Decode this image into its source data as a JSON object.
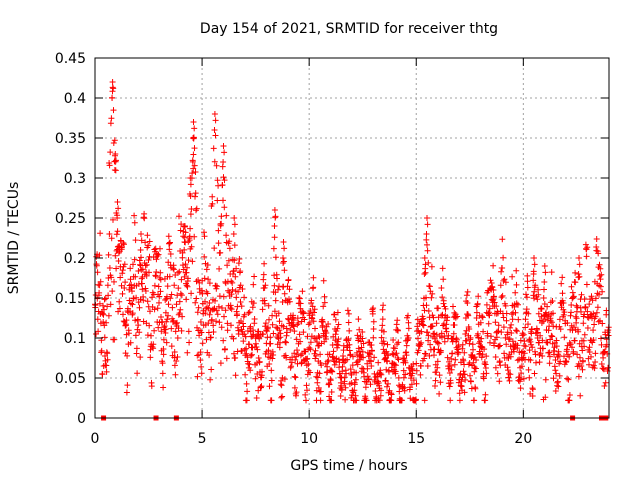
{
  "chart_data": {
    "type": "scatter",
    "title": "Day 154 of 2021, SRMTID for receiver thtg",
    "xlabel": "GPS time / hours",
    "ylabel": "SRMTID / TECUs",
    "xlim": [
      0,
      24
    ],
    "ylim": [
      0,
      0.45
    ],
    "x_ticks": [
      0,
      5,
      10,
      15,
      20
    ],
    "x_tick_labels": [
      "0",
      "5",
      "10",
      "15",
      "20"
    ],
    "y_ticks": [
      0,
      0.05,
      0.1,
      0.15,
      0.2,
      0.25,
      0.3,
      0.35,
      0.4,
      0.45
    ],
    "y_tick_labels": [
      "0",
      "0.05",
      "0.1",
      "0.15",
      "0.2",
      "0.25",
      "0.3",
      "0.35",
      "0.4",
      "0.45"
    ],
    "grid": true,
    "marker": "plus",
    "color": "#ff0000",
    "generator": {
      "seed": 154,
      "x_start": 0.0,
      "x_end": 24.0,
      "x_step": 0.012
    },
    "trend": [
      [
        0,
        0.15
      ],
      [
        0.5,
        0.13
      ],
      [
        1,
        0.15
      ],
      [
        1.5,
        0.13
      ],
      [
        2,
        0.15
      ],
      [
        2.5,
        0.16
      ],
      [
        3,
        0.13
      ],
      [
        3.5,
        0.14
      ],
      [
        4,
        0.16
      ],
      [
        4.5,
        0.15
      ],
      [
        5,
        0.13
      ],
      [
        5.5,
        0.13
      ],
      [
        6,
        0.15
      ],
      [
        6.5,
        0.12
      ],
      [
        7,
        0.1
      ],
      [
        7.5,
        0.09
      ],
      [
        8,
        0.1
      ],
      [
        9,
        0.095
      ],
      [
        10,
        0.095
      ],
      [
        11,
        0.08
      ],
      [
        12,
        0.06
      ],
      [
        13,
        0.065
      ],
      [
        14,
        0.06
      ],
      [
        15,
        0.06
      ],
      [
        15.5,
        0.1
      ],
      [
        16,
        0.11
      ],
      [
        17,
        0.075
      ],
      [
        18,
        0.09
      ],
      [
        18.8,
        0.13
      ],
      [
        19.5,
        0.11
      ],
      [
        20,
        0.09
      ],
      [
        21,
        0.09
      ],
      [
        22,
        0.1
      ],
      [
        23,
        0.12
      ],
      [
        23.5,
        0.13
      ],
      [
        24,
        0.08
      ]
    ],
    "peaks": [
      {
        "x": 0.82,
        "y": 0.42
      },
      {
        "x": 0.95,
        "y": 0.33
      },
      {
        "x": 1.05,
        "y": 0.27
      },
      {
        "x": 2.15,
        "y": 0.23
      },
      {
        "x": 4.2,
        "y": 0.24
      },
      {
        "x": 4.45,
        "y": 0.3
      },
      {
        "x": 4.6,
        "y": 0.37
      },
      {
        "x": 5.6,
        "y": 0.38
      },
      {
        "x": 6.0,
        "y": 0.34
      },
      {
        "x": 6.5,
        "y": 0.25
      },
      {
        "x": 8.4,
        "y": 0.26
      },
      {
        "x": 8.8,
        "y": 0.22
      },
      {
        "x": 15.5,
        "y": 0.25
      },
      {
        "x": 15.4,
        "y": 0.2
      },
      {
        "x": 18.6,
        "y": 0.16
      },
      {
        "x": 20.5,
        "y": 0.2
      },
      {
        "x": 22.6,
        "y": 0.2
      },
      {
        "x": 21.0,
        "y": 0.19
      }
    ],
    "zero_points": [
      0.4,
      2.85,
      3.8,
      22.3,
      23.65,
      23.85
    ]
  }
}
